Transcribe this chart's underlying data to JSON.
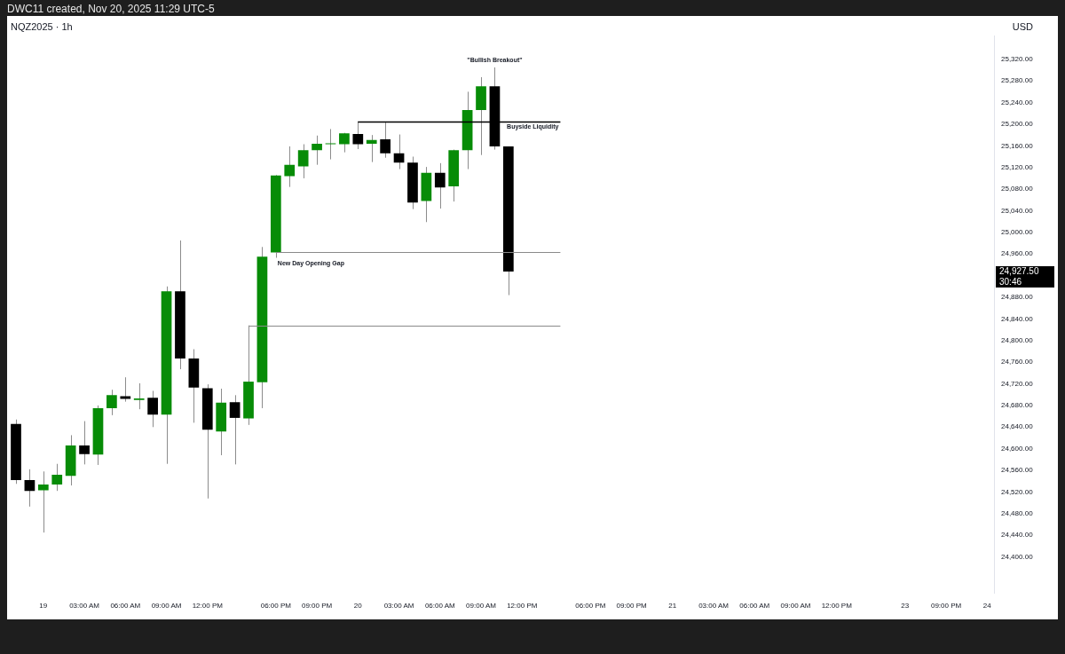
{
  "chart_data": {
    "type": "candlestick",
    "title": "NQZ2025 · 1h",
    "subtitle": "DWC11 created, Nov 20, 2025 11:29 UTC-5",
    "ylabel": "USD",
    "categories": [
      null,
      null,
      "19",
      null,
      null,
      "03:00 AM",
      null,
      null,
      "06:00 AM",
      null,
      null,
      "09:00 AM",
      null,
      null,
      "12:00 PM",
      null,
      null,
      null,
      null,
      "06:00 PM",
      null,
      null,
      "09:00 PM",
      null,
      null,
      "20",
      null,
      null,
      "03:00 AM",
      null,
      null,
      "06:00 AM",
      null,
      null,
      "09:00 AM",
      null,
      null,
      "12:00 PM",
      null,
      null,
      null,
      null,
      "06:00 PM",
      null,
      null,
      "09:00 PM",
      null,
      null,
      "21",
      null,
      null,
      "03:00 AM",
      null,
      null,
      "06:00 AM",
      null,
      null,
      "09:00 AM",
      null,
      null,
      "12:00 PM",
      null,
      null,
      null,
      null,
      "23",
      null,
      null,
      "09:00 PM",
      null,
      null,
      "24"
    ],
    "ohlc": [
      [
        24646,
        24654,
        24535,
        24542
      ],
      [
        24542,
        24562,
        24493,
        24522
      ],
      [
        24523,
        24558,
        24445,
        24534
      ],
      [
        24534,
        24572,
        24522,
        24552
      ],
      [
        24550,
        24625,
        24532,
        24606
      ],
      [
        24606,
        24651,
        24571,
        24590
      ],
      [
        24589,
        24680,
        24570,
        24675
      ],
      [
        24675,
        24709,
        24662,
        24699
      ],
      [
        24697,
        24732,
        24687,
        24692
      ],
      [
        24690,
        24721,
        24673,
        24693
      ],
      [
        24694,
        24707,
        24640,
        24663
      ],
      [
        24663,
        24900,
        24572,
        24891
      ],
      [
        24891,
        24985,
        24747,
        24767
      ],
      [
        24767,
        24784,
        24648,
        24713
      ],
      [
        24712,
        24719,
        24508,
        24635
      ],
      [
        24632,
        24711,
        24588,
        24685
      ],
      [
        24686,
        24699,
        24571,
        24657
      ],
      [
        24656,
        24828,
        24644,
        24724
      ],
      [
        24723,
        24973,
        24675,
        24955
      ],
      [
        24963,
        25106,
        24953,
        25105
      ],
      [
        25104,
        25159,
        25084,
        25125
      ],
      [
        25122,
        25163,
        25100,
        25152
      ],
      [
        25152,
        25179,
        25125,
        25164
      ],
      [
        25163,
        25191,
        25135,
        25164
      ],
      [
        25163,
        25184,
        25148,
        25183
      ],
      [
        25182,
        25205,
        25154,
        25163
      ],
      [
        25164,
        25180,
        25130,
        25171
      ],
      [
        25172,
        25203,
        25138,
        25146
      ],
      [
        25146,
        25181,
        25117,
        25129
      ],
      [
        25129,
        25140,
        25043,
        25055
      ],
      [
        25058,
        25121,
        25019,
        25110
      ],
      [
        25110,
        25128,
        25044,
        25083
      ],
      [
        25085,
        25153,
        25057,
        25152
      ],
      [
        25152,
        25260,
        25117,
        25226
      ],
      [
        25226,
        25287,
        25143,
        25270
      ],
      [
        25270,
        25305,
        25153,
        25159
      ],
      [
        25159,
        25159,
        24884,
        24927.5
      ],
      null,
      null,
      null,
      null,
      null,
      null,
      null,
      null,
      null,
      null,
      null,
      null,
      null,
      null,
      null,
      null,
      null,
      null,
      null,
      null,
      null,
      null,
      null,
      null,
      null,
      null,
      null,
      null,
      null,
      null,
      null,
      null,
      null,
      null,
      null
    ],
    "colors": [
      "#000000",
      "#000000",
      "#078c07",
      "#078c07",
      "#078c07",
      "#000000",
      "#078c07",
      "#078c07",
      "#000000",
      "#078c07",
      "#000000",
      "#078c07",
      "#000000",
      "#000000",
      "#000000",
      "#078c07",
      "#000000",
      "#078c07",
      "#078c07",
      "#078c07",
      "#078c07",
      "#078c07",
      "#078c07",
      "#078c07",
      "#078c07",
      "#000000",
      "#078c07",
      "#000000",
      "#000000",
      "#000000",
      "#078c07",
      "#000000",
      "#078c07",
      "#078c07",
      "#078c07",
      "#000000",
      "#000000",
      null,
      null,
      null,
      null,
      null,
      null,
      null,
      null,
      null,
      null,
      null,
      null,
      null,
      null,
      null,
      null,
      null,
      null,
      null,
      null,
      null,
      null,
      null,
      null,
      null,
      null,
      null,
      null,
      null,
      null,
      null,
      null,
      null,
      null,
      null
    ],
    "ylim": [
      24333,
      25364
    ],
    "yticks": [
      {
        "value": 24400,
        "label": "24,400.00"
      },
      {
        "value": 24440,
        "label": "24,440.00"
      },
      {
        "value": 24480,
        "label": "24,480.00"
      },
      {
        "value": 24520,
        "label": "24,520.00"
      },
      {
        "value": 24560,
        "label": "24,560.00"
      },
      {
        "value": 24600,
        "label": "24,600.00"
      },
      {
        "value": 24640,
        "label": "24,640.00"
      },
      {
        "value": 24680,
        "label": "24,680.00"
      },
      {
        "value": 24720,
        "label": "24,720.00"
      },
      {
        "value": 24760,
        "label": "24,760.00"
      },
      {
        "value": 24800,
        "label": "24,800.00"
      },
      {
        "value": 24840,
        "label": "24,840.00"
      },
      {
        "value": 24880,
        "label": "24,880.00"
      },
      {
        "value": 24960,
        "label": "24,960.00"
      },
      {
        "value": 25000,
        "label": "25,000.00"
      },
      {
        "value": 25040,
        "label": "25,040.00"
      },
      {
        "value": 25080,
        "label": "25,080.00"
      },
      {
        "value": 25120,
        "label": "25,120.00"
      },
      {
        "value": 25160,
        "label": "25,160.00"
      },
      {
        "value": 25200,
        "label": "25,200.00"
      },
      {
        "value": 25240,
        "label": "25,240.00"
      },
      {
        "value": 25280,
        "label": "25,280.00"
      },
      {
        "value": 25320,
        "label": "25,320.00"
      }
    ],
    "ref_lines": [
      {
        "axis": "y",
        "value": 25205,
        "label": "Buyside Liquidity",
        "color": "#000000"
      },
      {
        "axis": "y",
        "value": 24963,
        "label": "New Day Opening Gap",
        "color": "#8a8a8a"
      },
      {
        "axis": "y",
        "value": 24828,
        "color": "#8a8a8a"
      }
    ],
    "annotations": [
      {
        "text": "\"Bullish Breakout\"",
        "y": 25305
      },
      "24,927.50",
      "30:46"
    ]
  }
}
